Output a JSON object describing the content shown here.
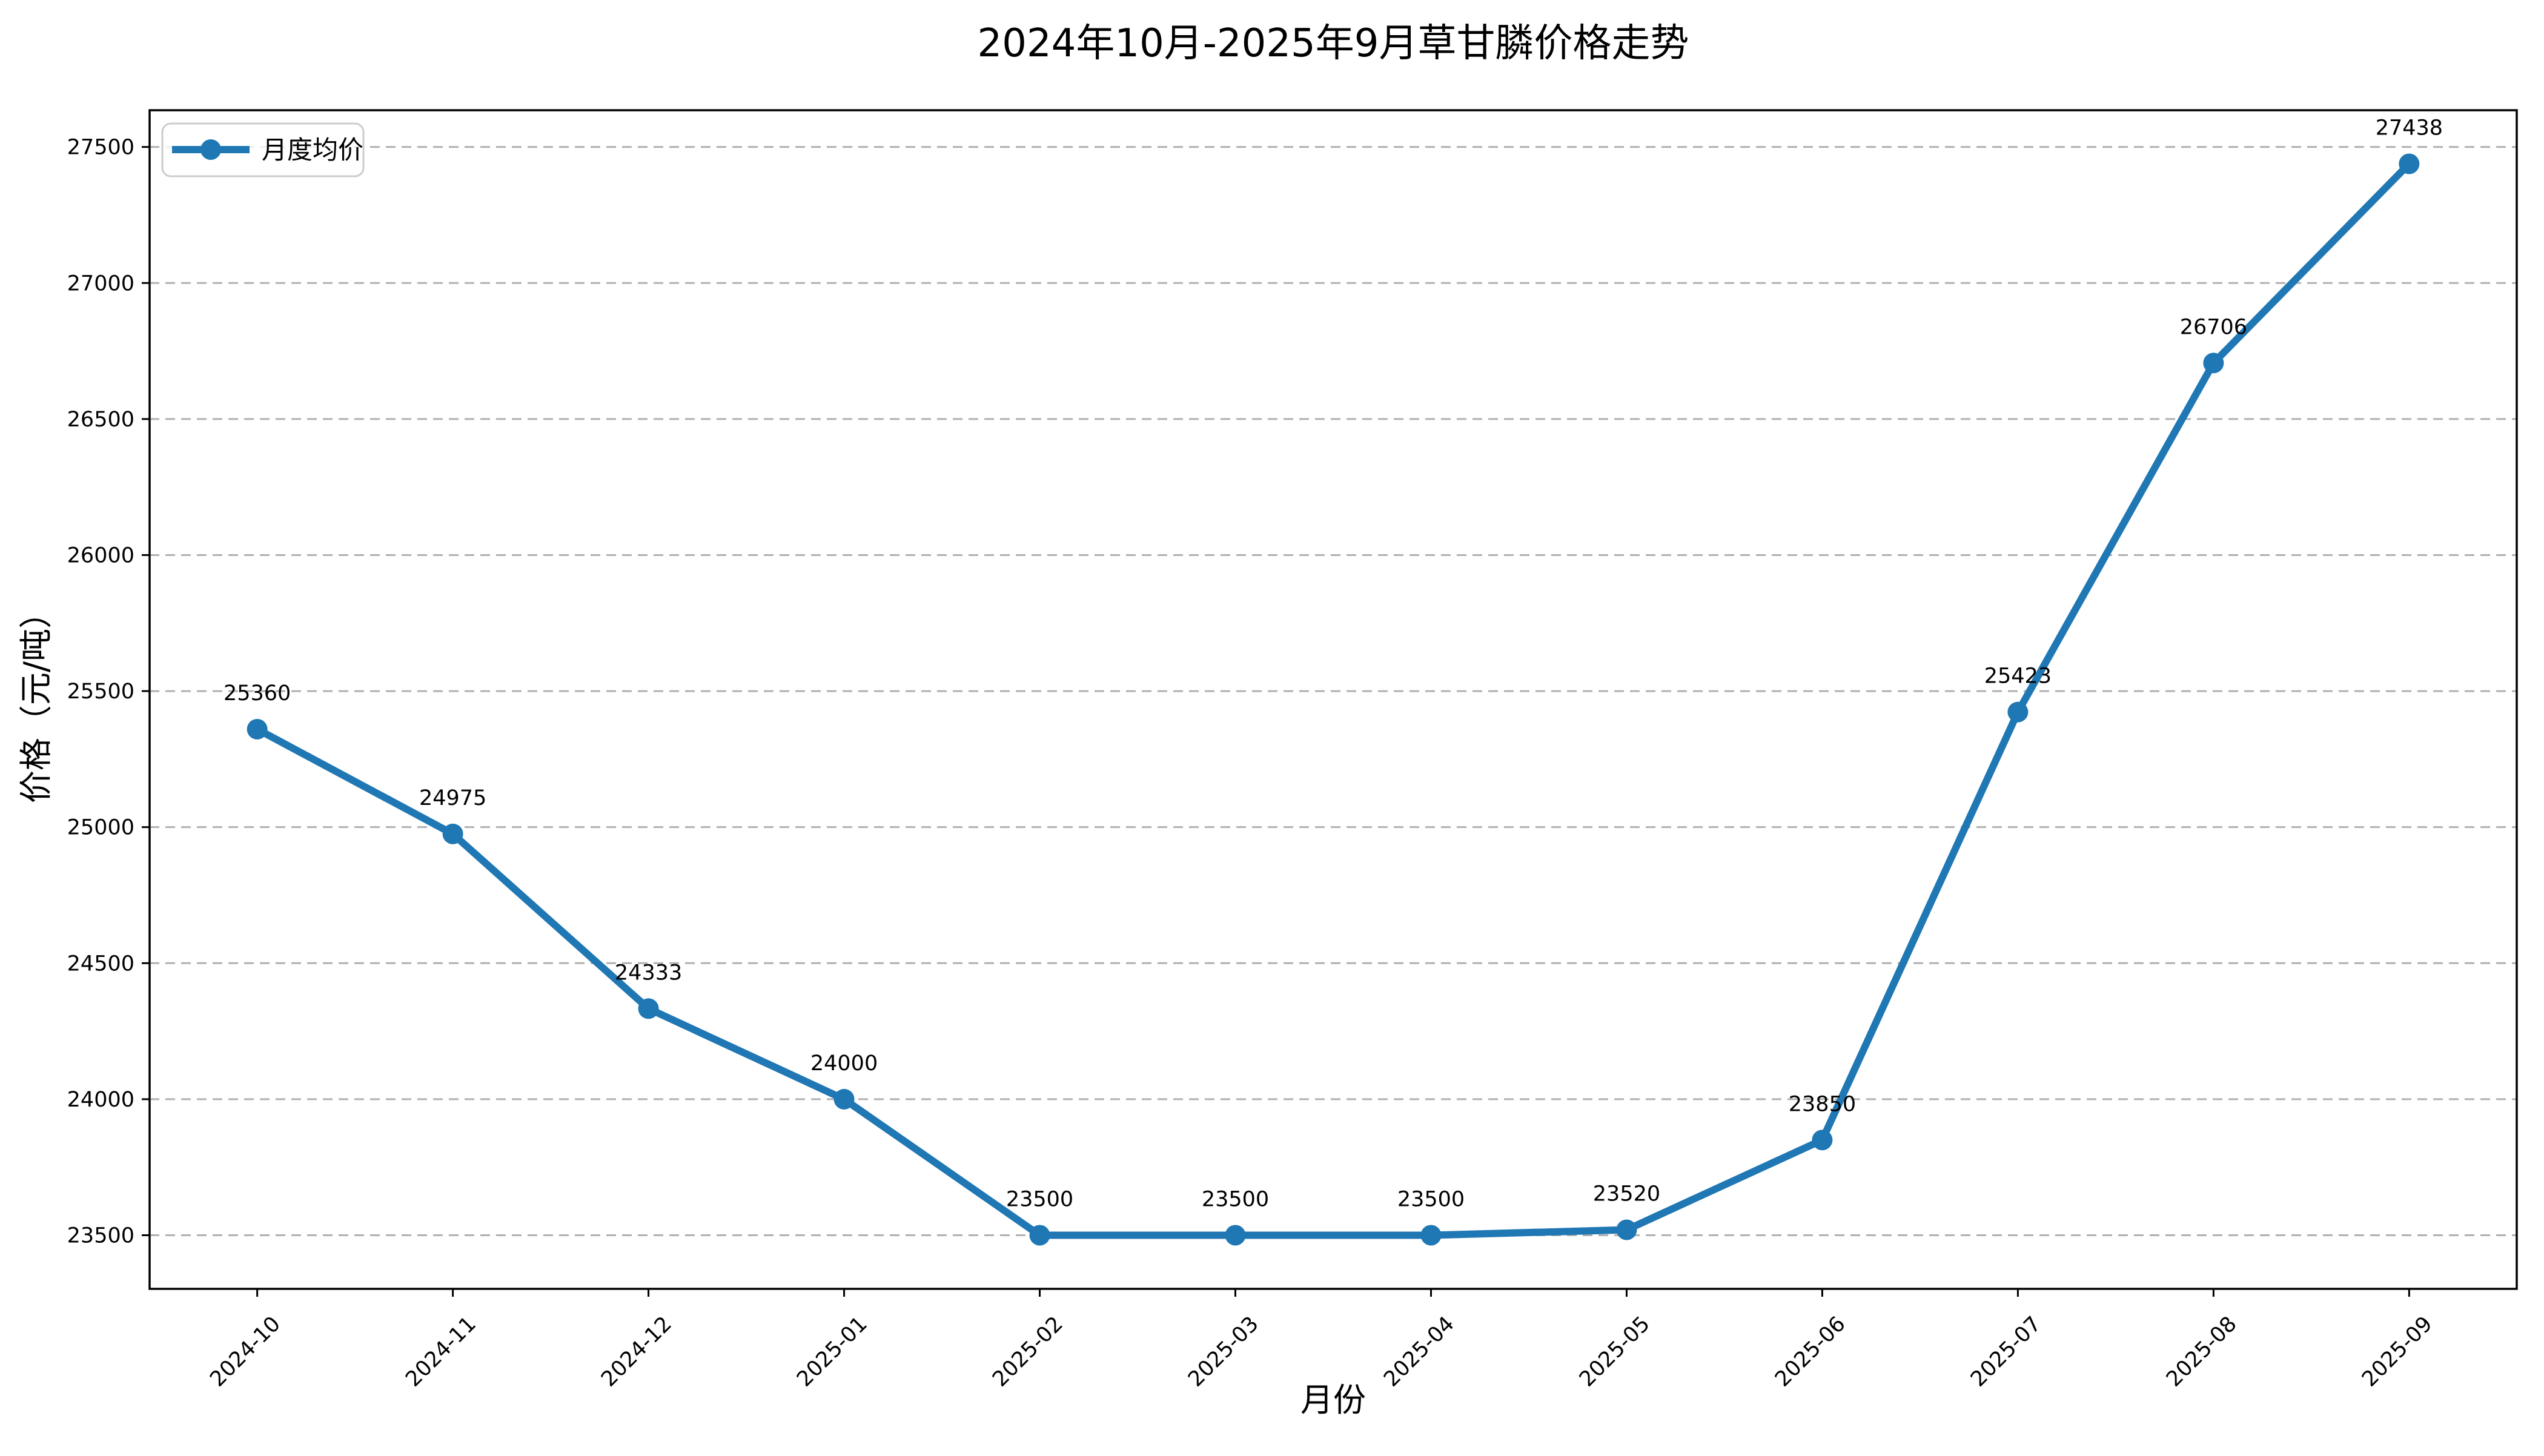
{
  "chart_data": {
    "type": "line",
    "title": "2024年10月-2025年9月草甘膦价格走势",
    "xlabel": "月份",
    "ylabel": "价格（元/吨）",
    "categories": [
      "2024-10",
      "2024-11",
      "2024-12",
      "2025-01",
      "2025-02",
      "2025-03",
      "2025-04",
      "2025-05",
      "2025-06",
      "2025-07",
      "2025-08",
      "2025-09"
    ],
    "series": [
      {
        "name": "月度均价",
        "values": [
          25360,
          24975,
          24333,
          24000,
          23500,
          23500,
          23500,
          23520,
          23850,
          25423,
          26706,
          27438
        ]
      }
    ],
    "data_labels": [
      25360,
      24975,
      24333,
      24000,
      23500,
      23500,
      23500,
      23520,
      23850,
      25423,
      26706,
      27438
    ],
    "yticks": [
      23500,
      24000,
      24500,
      25000,
      25500,
      26000,
      26500,
      27000,
      27500
    ],
    "ylim": [
      23303,
      27635
    ],
    "grid": "horizontal-dashed",
    "legend_position": "upper-left",
    "colors": {
      "line": "#1f77b4",
      "grid": "#b0b0b0",
      "axis": "#000000",
      "legend_border": "#cccccc",
      "background": "#ffffff"
    }
  }
}
